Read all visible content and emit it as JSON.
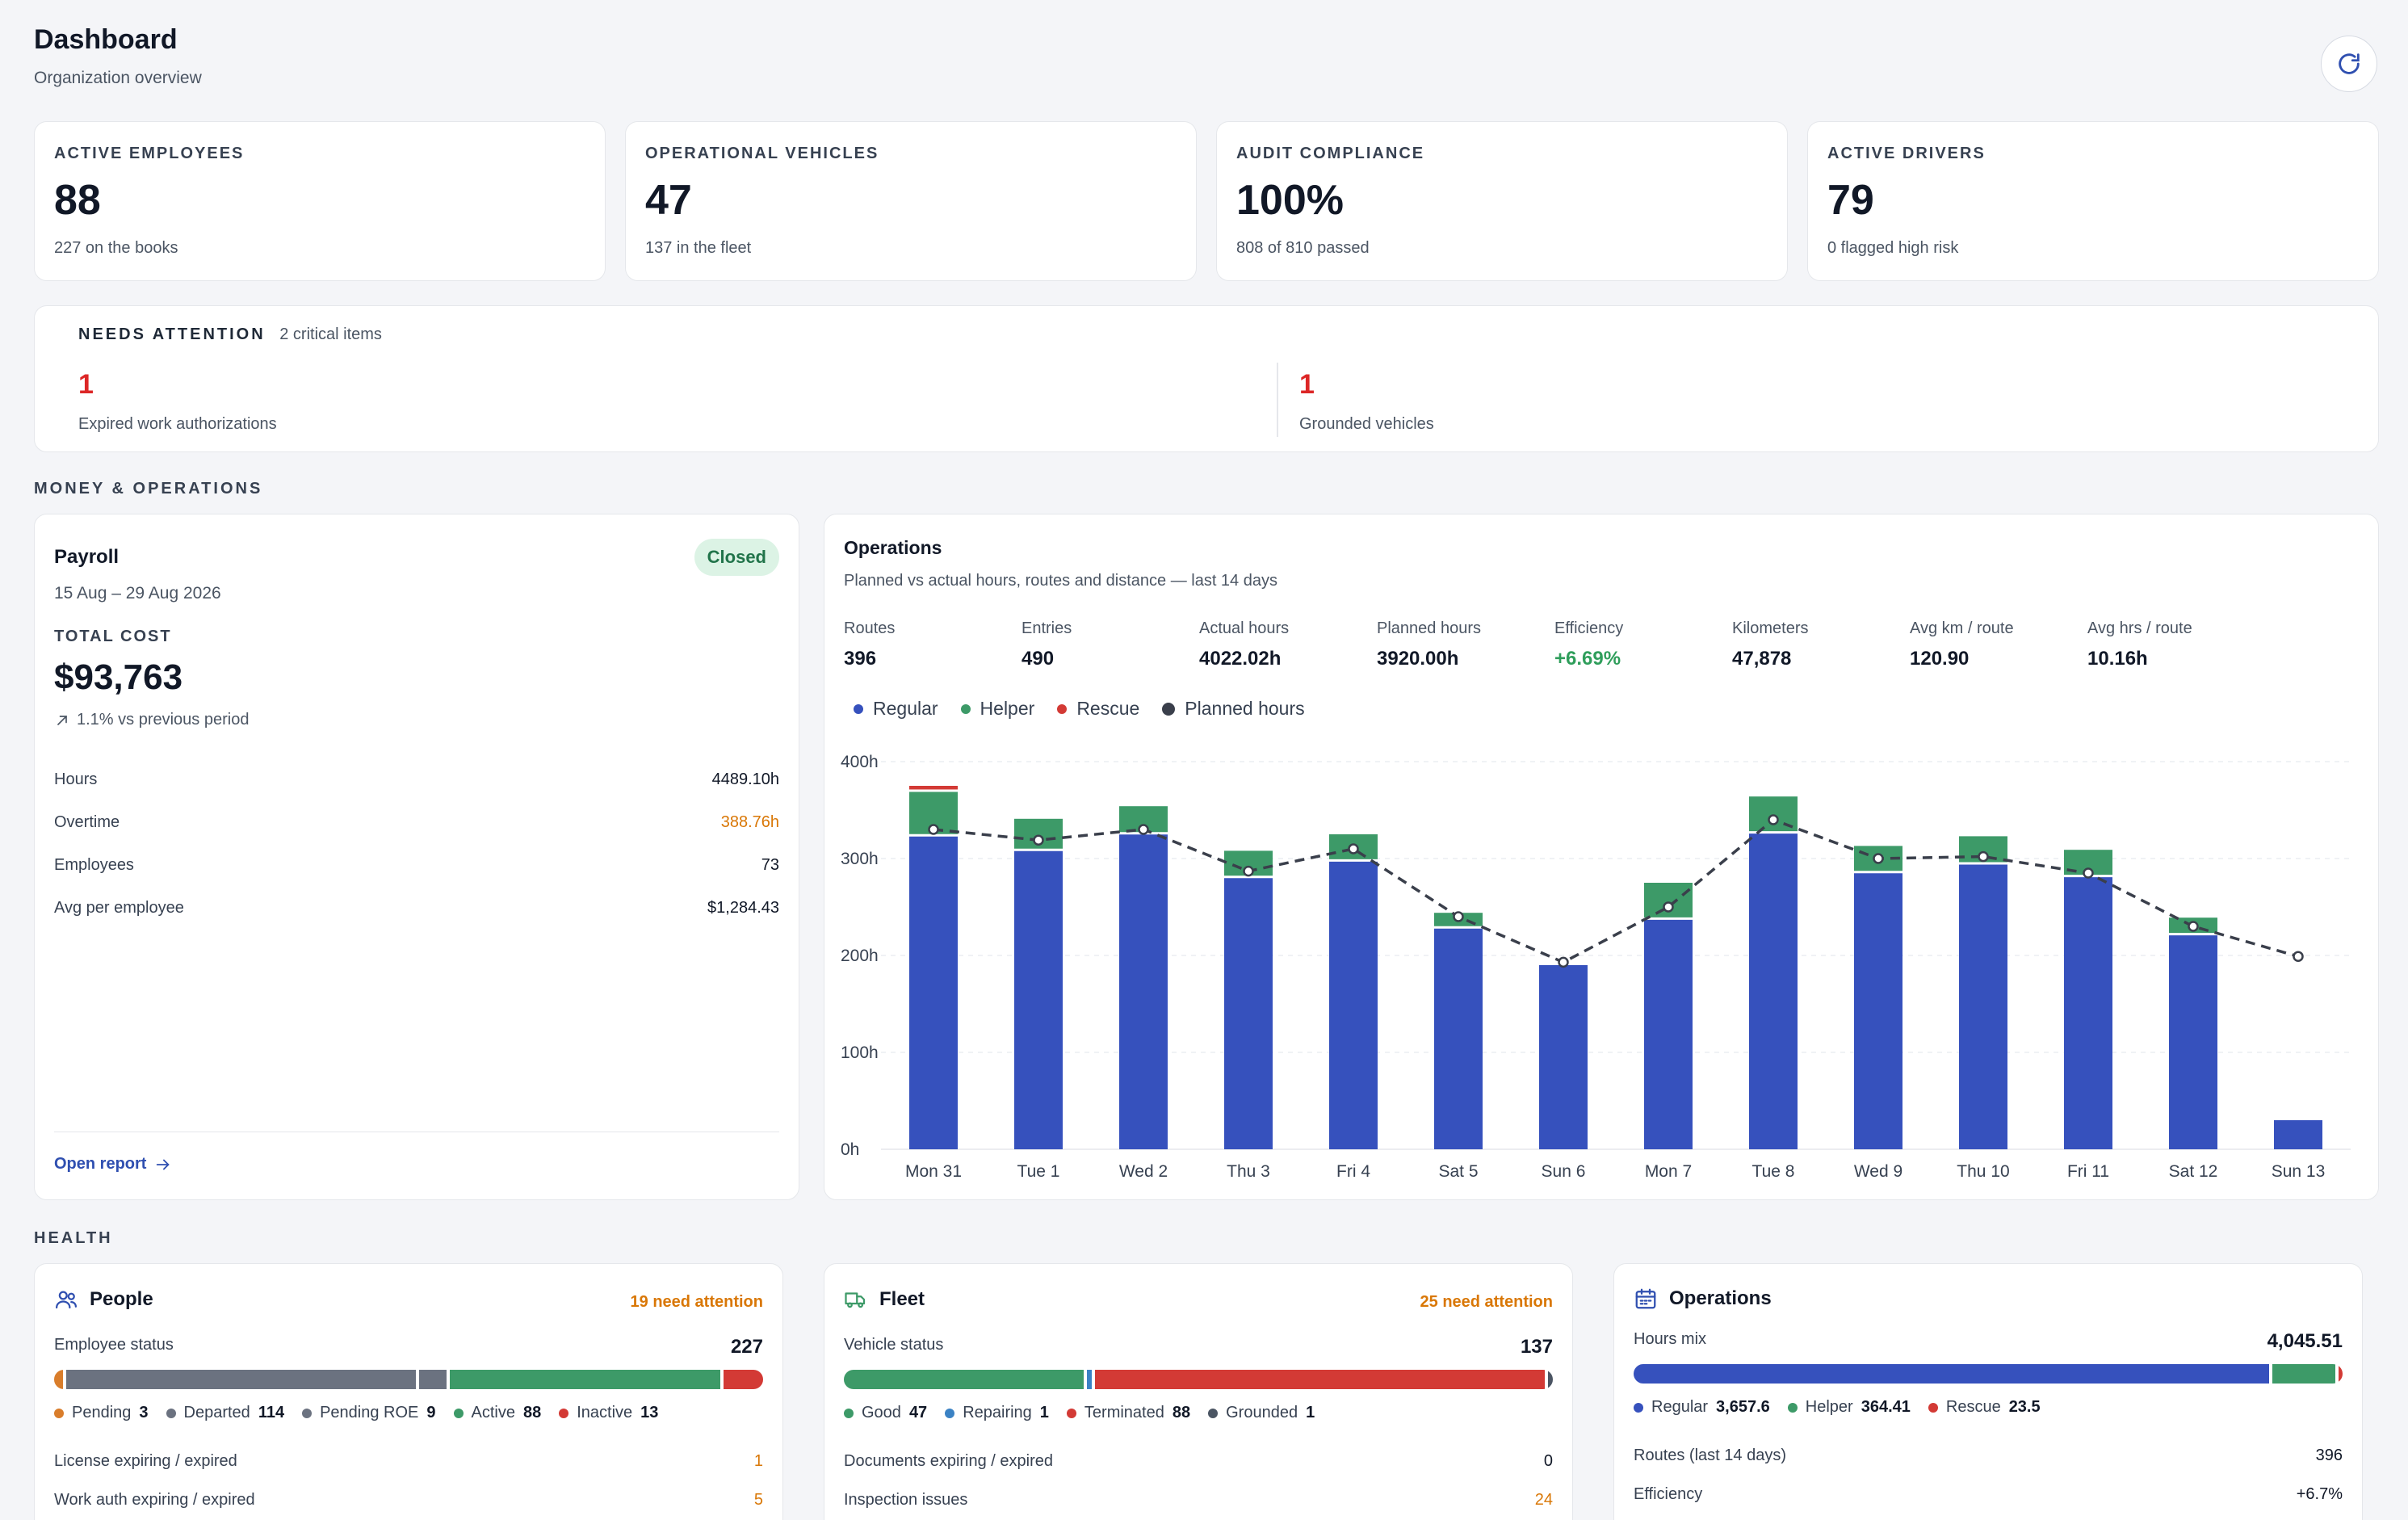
{
  "header": {
    "title": "Dashboard",
    "subtitle": "Organization overview",
    "refresh_icon": "refresh-icon"
  },
  "kpis": [
    {
      "label": "ACTIVE EMPLOYEES",
      "value": "88",
      "sub": "227 on the books"
    },
    {
      "label": "OPERATIONAL VEHICLES",
      "value": "47",
      "sub": "137 in the fleet"
    },
    {
      "label": "AUDIT COMPLIANCE",
      "value": "100%",
      "sub": "808 of 810 passed"
    },
    {
      "label": "ACTIVE DRIVERS",
      "value": "79",
      "sub": "0 flagged high risk"
    }
  ],
  "attention": {
    "title": "NEEDS ATTENTION",
    "count_text": "2 critical items",
    "items": [
      {
        "value": "1",
        "label": "Expired work authorizations"
      },
      {
        "value": "1",
        "label": "Grounded vehicles"
      }
    ]
  },
  "sections": {
    "money": "MONEY & OPERATIONS",
    "health": "HEALTH"
  },
  "payroll": {
    "title": "Payroll",
    "status": "Closed",
    "period": "15 Aug – 29 Aug 2026",
    "total_label": "TOTAL COST",
    "total": "$93,763",
    "trend": "1.1% vs previous period",
    "stats": [
      {
        "label": "Hours",
        "value": "4489.10h"
      },
      {
        "label": "Overtime",
        "value": "388.76h",
        "highlight": true
      },
      {
        "label": "Employees",
        "value": "73"
      },
      {
        "label": "Avg per employee",
        "value": "$1,284.43"
      }
    ],
    "link": "Open report"
  },
  "operations": {
    "title": "Operations",
    "subtitle": "Planned vs actual hours, routes and distance — last 14 days",
    "stats": [
      {
        "label": "Routes",
        "value": "396"
      },
      {
        "label": "Entries",
        "value": "490"
      },
      {
        "label": "Actual hours",
        "value": "4022.02h"
      },
      {
        "label": "Planned hours",
        "value": "3920.00h"
      },
      {
        "label": "Efficiency",
        "value": "+6.69%",
        "positive": true
      },
      {
        "label": "Kilometers",
        "value": "47,878"
      },
      {
        "label": "Avg km / route",
        "value": "120.90"
      },
      {
        "label": "Avg hrs / route",
        "value": "10.16h"
      }
    ],
    "legend": [
      {
        "label": "Regular",
        "color": "#3651bd"
      },
      {
        "label": "Helper",
        "color": "#3d9a68"
      },
      {
        "label": "Rescue",
        "color": "#d33a35"
      },
      {
        "label": "Planned hours",
        "color": "#3a3f4b"
      }
    ]
  },
  "chart_data": {
    "type": "bar",
    "stacked": true,
    "categories": [
      "Mon 31",
      "Tue 1",
      "Wed 2",
      "Thu 3",
      "Fri 4",
      "Sat 5",
      "Sun 6",
      "Mon 7",
      "Tue 8",
      "Wed 9",
      "Thu 10",
      "Fri 11",
      "Sat 12",
      "Sun 13"
    ],
    "series": [
      {
        "name": "Regular",
        "color": "#3651bd",
        "values": [
          324,
          309,
          326,
          281,
          298,
          229,
          190,
          238,
          327,
          286,
          295,
          282,
          222,
          30
        ]
      },
      {
        "name": "Helper",
        "color": "#3d9a68",
        "values": [
          46,
          32,
          28,
          27,
          27,
          15,
          0,
          37,
          37,
          27,
          28,
          27,
          17,
          0
        ]
      },
      {
        "name": "Rescue",
        "color": "#d33a35",
        "values": [
          5,
          0,
          0,
          0,
          0,
          0,
          0,
          0,
          0,
          0,
          0,
          0,
          0,
          0
        ]
      },
      {
        "name": "Planned hours",
        "type": "line",
        "color": "#3a3f4b",
        "values": [
          330,
          319,
          330,
          287,
          310,
          240,
          193,
          250,
          340,
          300,
          302,
          285,
          230,
          199
        ]
      }
    ],
    "y_ticks": [
      "0h",
      "100h",
      "200h",
      "300h",
      "400h"
    ],
    "ylim": [
      0,
      400
    ],
    "grid": true,
    "legend_position": "top-left"
  },
  "health": {
    "people": {
      "title": "People",
      "attention": "19 need attention",
      "status_label": "Employee status",
      "status_total": "227",
      "segments": [
        {
          "label": "Pending",
          "value": 3,
          "value_text": "3",
          "color": "#d97d2b"
        },
        {
          "label": "Departed",
          "value": 114,
          "value_text": "114",
          "color": "#6b7280"
        },
        {
          "label": "Pending ROE",
          "value": 9,
          "value_text": "9",
          "color": "#6b7280"
        },
        {
          "label": "Active",
          "value": 88,
          "value_text": "88",
          "color": "#3d9a68"
        },
        {
          "label": "Inactive",
          "value": 13,
          "value_text": "13",
          "color": "#d33a35"
        }
      ],
      "rows": [
        {
          "label": "License expiring / expired",
          "value": "1"
        },
        {
          "label": "Work auth expiring / expired",
          "value": "5"
        }
      ]
    },
    "fleet": {
      "title": "Fleet",
      "attention": "25 need attention",
      "status_label": "Vehicle status",
      "status_total": "137",
      "segments": [
        {
          "label": "Good",
          "value": 47,
          "value_text": "47",
          "color": "#3d9a68"
        },
        {
          "label": "Repairing",
          "value": 1,
          "value_text": "1",
          "color": "#3b82c4"
        },
        {
          "label": "Terminated",
          "value": 88,
          "value_text": "88",
          "color": "#d33a35"
        },
        {
          "label": "Grounded",
          "value": 1,
          "value_text": "1",
          "color": "#4b5563"
        }
      ],
      "rows": [
        {
          "label": "Documents expiring / expired",
          "value": "0"
        },
        {
          "label": "Inspection issues",
          "value": "24"
        }
      ]
    },
    "ops": {
      "title": "Operations",
      "mix_label": "Hours mix",
      "mix_total": "4,045.51",
      "segments": [
        {
          "label": "Regular",
          "value": 3657.6,
          "value_text": "3,657.6",
          "color": "#3651bd"
        },
        {
          "label": "Helper",
          "value": 364.41,
          "value_text": "364.41",
          "color": "#3d9a68"
        },
        {
          "label": "Rescue",
          "value": 23.5,
          "value_text": "23.5",
          "color": "#d33a35"
        }
      ],
      "rows": [
        {
          "label": "Routes (last 14 days)",
          "value": "396"
        },
        {
          "label": "Efficiency",
          "value": "+6.7%"
        }
      ]
    }
  }
}
